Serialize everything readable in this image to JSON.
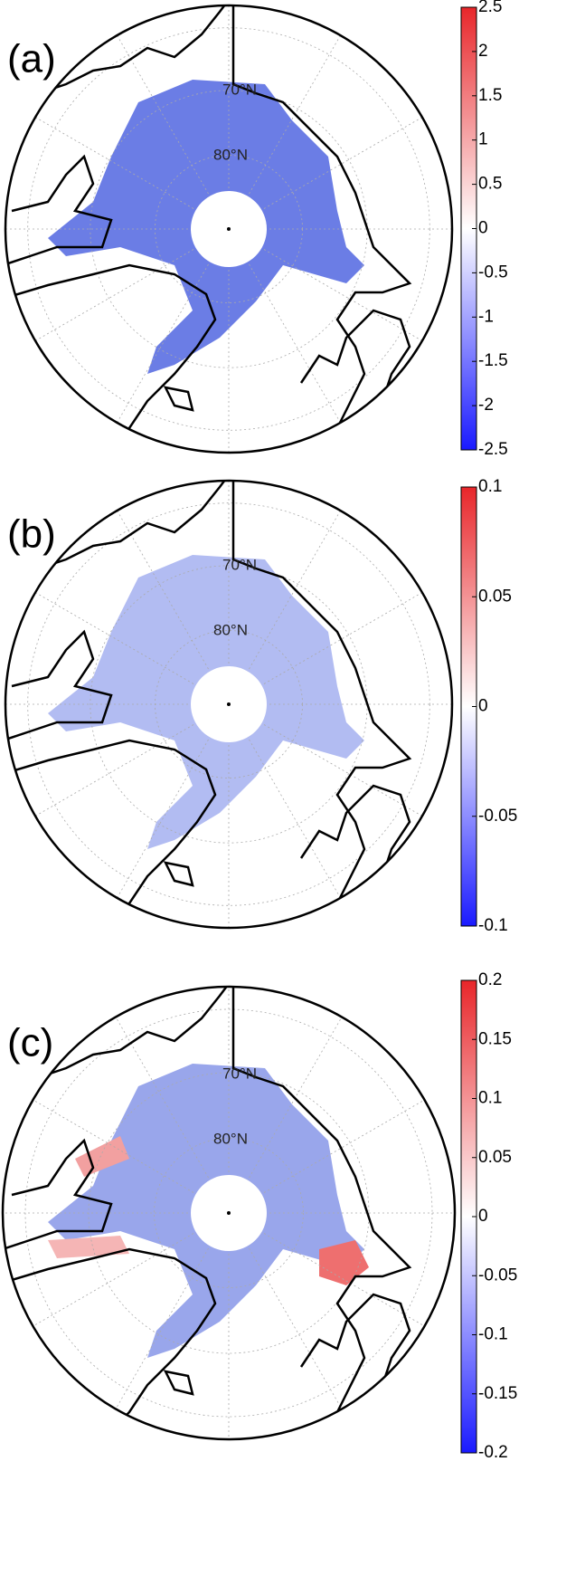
{
  "panels": [
    {
      "label": "(a)",
      "lat_labels": [
        "70°N",
        "80°N"
      ],
      "colorbar": {
        "lim": [
          -2.5,
          2.5
        ],
        "ticks": [
          2.5,
          2,
          1.5,
          1,
          0.5,
          0,
          -0.5,
          -1,
          -1.5,
          -2,
          -2.5
        ]
      }
    },
    {
      "label": "(b)",
      "lat_labels": [
        "70°N",
        "80°N"
      ],
      "colorbar": {
        "lim": [
          -0.1,
          0.1
        ],
        "ticks": [
          0.1,
          0.05,
          0,
          -0.05,
          -0.1
        ]
      }
    },
    {
      "label": "(c)",
      "lat_labels": [
        "70°N",
        "80°N"
      ],
      "colorbar": {
        "lim": [
          -0.2,
          0.2
        ],
        "ticks": [
          0.2,
          0.15,
          0.1,
          0.05,
          0,
          -0.05,
          -0.1,
          -0.15,
          -0.2
        ]
      }
    }
  ]
}
